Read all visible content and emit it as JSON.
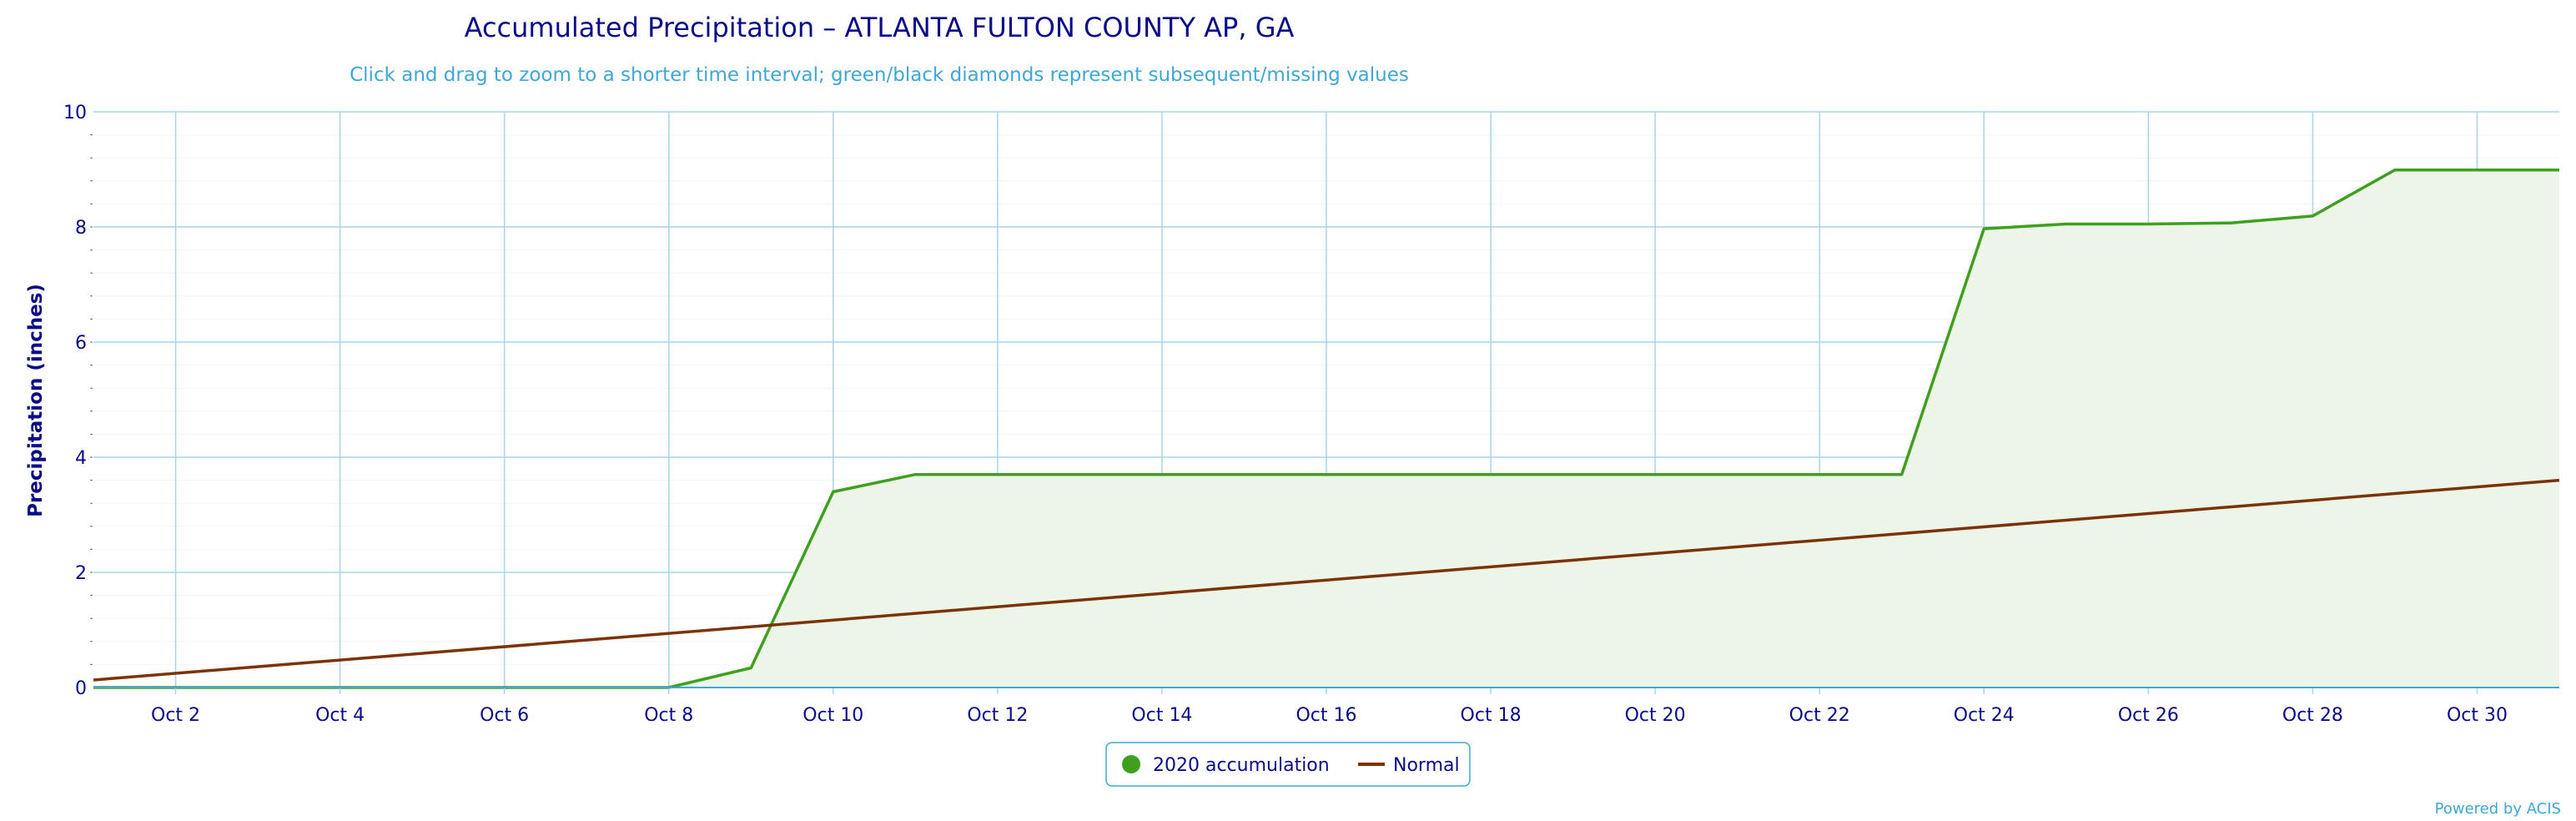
{
  "chart_data": {
    "type": "area",
    "title": "Accumulated Precipitation – ATLANTA FULTON COUNTY AP, GA",
    "subtitle": "Click and drag to zoom to a shorter time interval; green/black diamonds represent subsequent/missing values",
    "xlabel": "",
    "ylabel": "Precipitation (inches)",
    "x_tick_labels": [
      "Oct 2",
      "Oct 4",
      "Oct 6",
      "Oct 8",
      "Oct 10",
      "Oct 12",
      "Oct 14",
      "Oct 16",
      "Oct 18",
      "Oct 20",
      "Oct 22",
      "Oct 24",
      "Oct 26",
      "Oct 28",
      "Oct 30"
    ],
    "y_tick_labels": [
      "0",
      "2",
      "4",
      "6",
      "8",
      "10"
    ],
    "ylim": [
      0,
      10
    ],
    "xlim": [
      "2020-10-01",
      "2020-10-31"
    ],
    "grid": true,
    "legend_position": "bottom-center",
    "series": [
      {
        "name": "2020 accumulation",
        "color": "#3f9f1f",
        "fill": "#ecf5e8",
        "x": [
          "2020-10-01",
          "2020-10-02",
          "2020-10-03",
          "2020-10-04",
          "2020-10-05",
          "2020-10-06",
          "2020-10-07",
          "2020-10-08",
          "2020-10-09",
          "2020-10-10",
          "2020-10-11",
          "2020-10-12",
          "2020-10-13",
          "2020-10-14",
          "2020-10-15",
          "2020-10-16",
          "2020-10-17",
          "2020-10-18",
          "2020-10-19",
          "2020-10-20",
          "2020-10-21",
          "2020-10-22",
          "2020-10-23",
          "2020-10-24",
          "2020-10-25",
          "2020-10-26",
          "2020-10-27",
          "2020-10-28",
          "2020-10-29",
          "2020-10-30",
          "2020-10-31"
        ],
        "values": [
          0,
          0,
          0,
          0,
          0,
          0,
          0,
          0,
          0.34,
          3.4,
          3.7,
          3.7,
          3.7,
          3.7,
          3.7,
          3.7,
          3.7,
          3.7,
          3.7,
          3.7,
          3.7,
          3.7,
          3.7,
          7.97,
          8.05,
          8.05,
          8.07,
          8.19,
          8.99,
          8.99,
          8.99
        ]
      },
      {
        "name": "Normal",
        "color": "#7b3306",
        "x": [
          "2020-10-01",
          "2020-10-31"
        ],
        "values": [
          0.13,
          3.6
        ]
      }
    ]
  },
  "credit": "Powered by ACIS"
}
